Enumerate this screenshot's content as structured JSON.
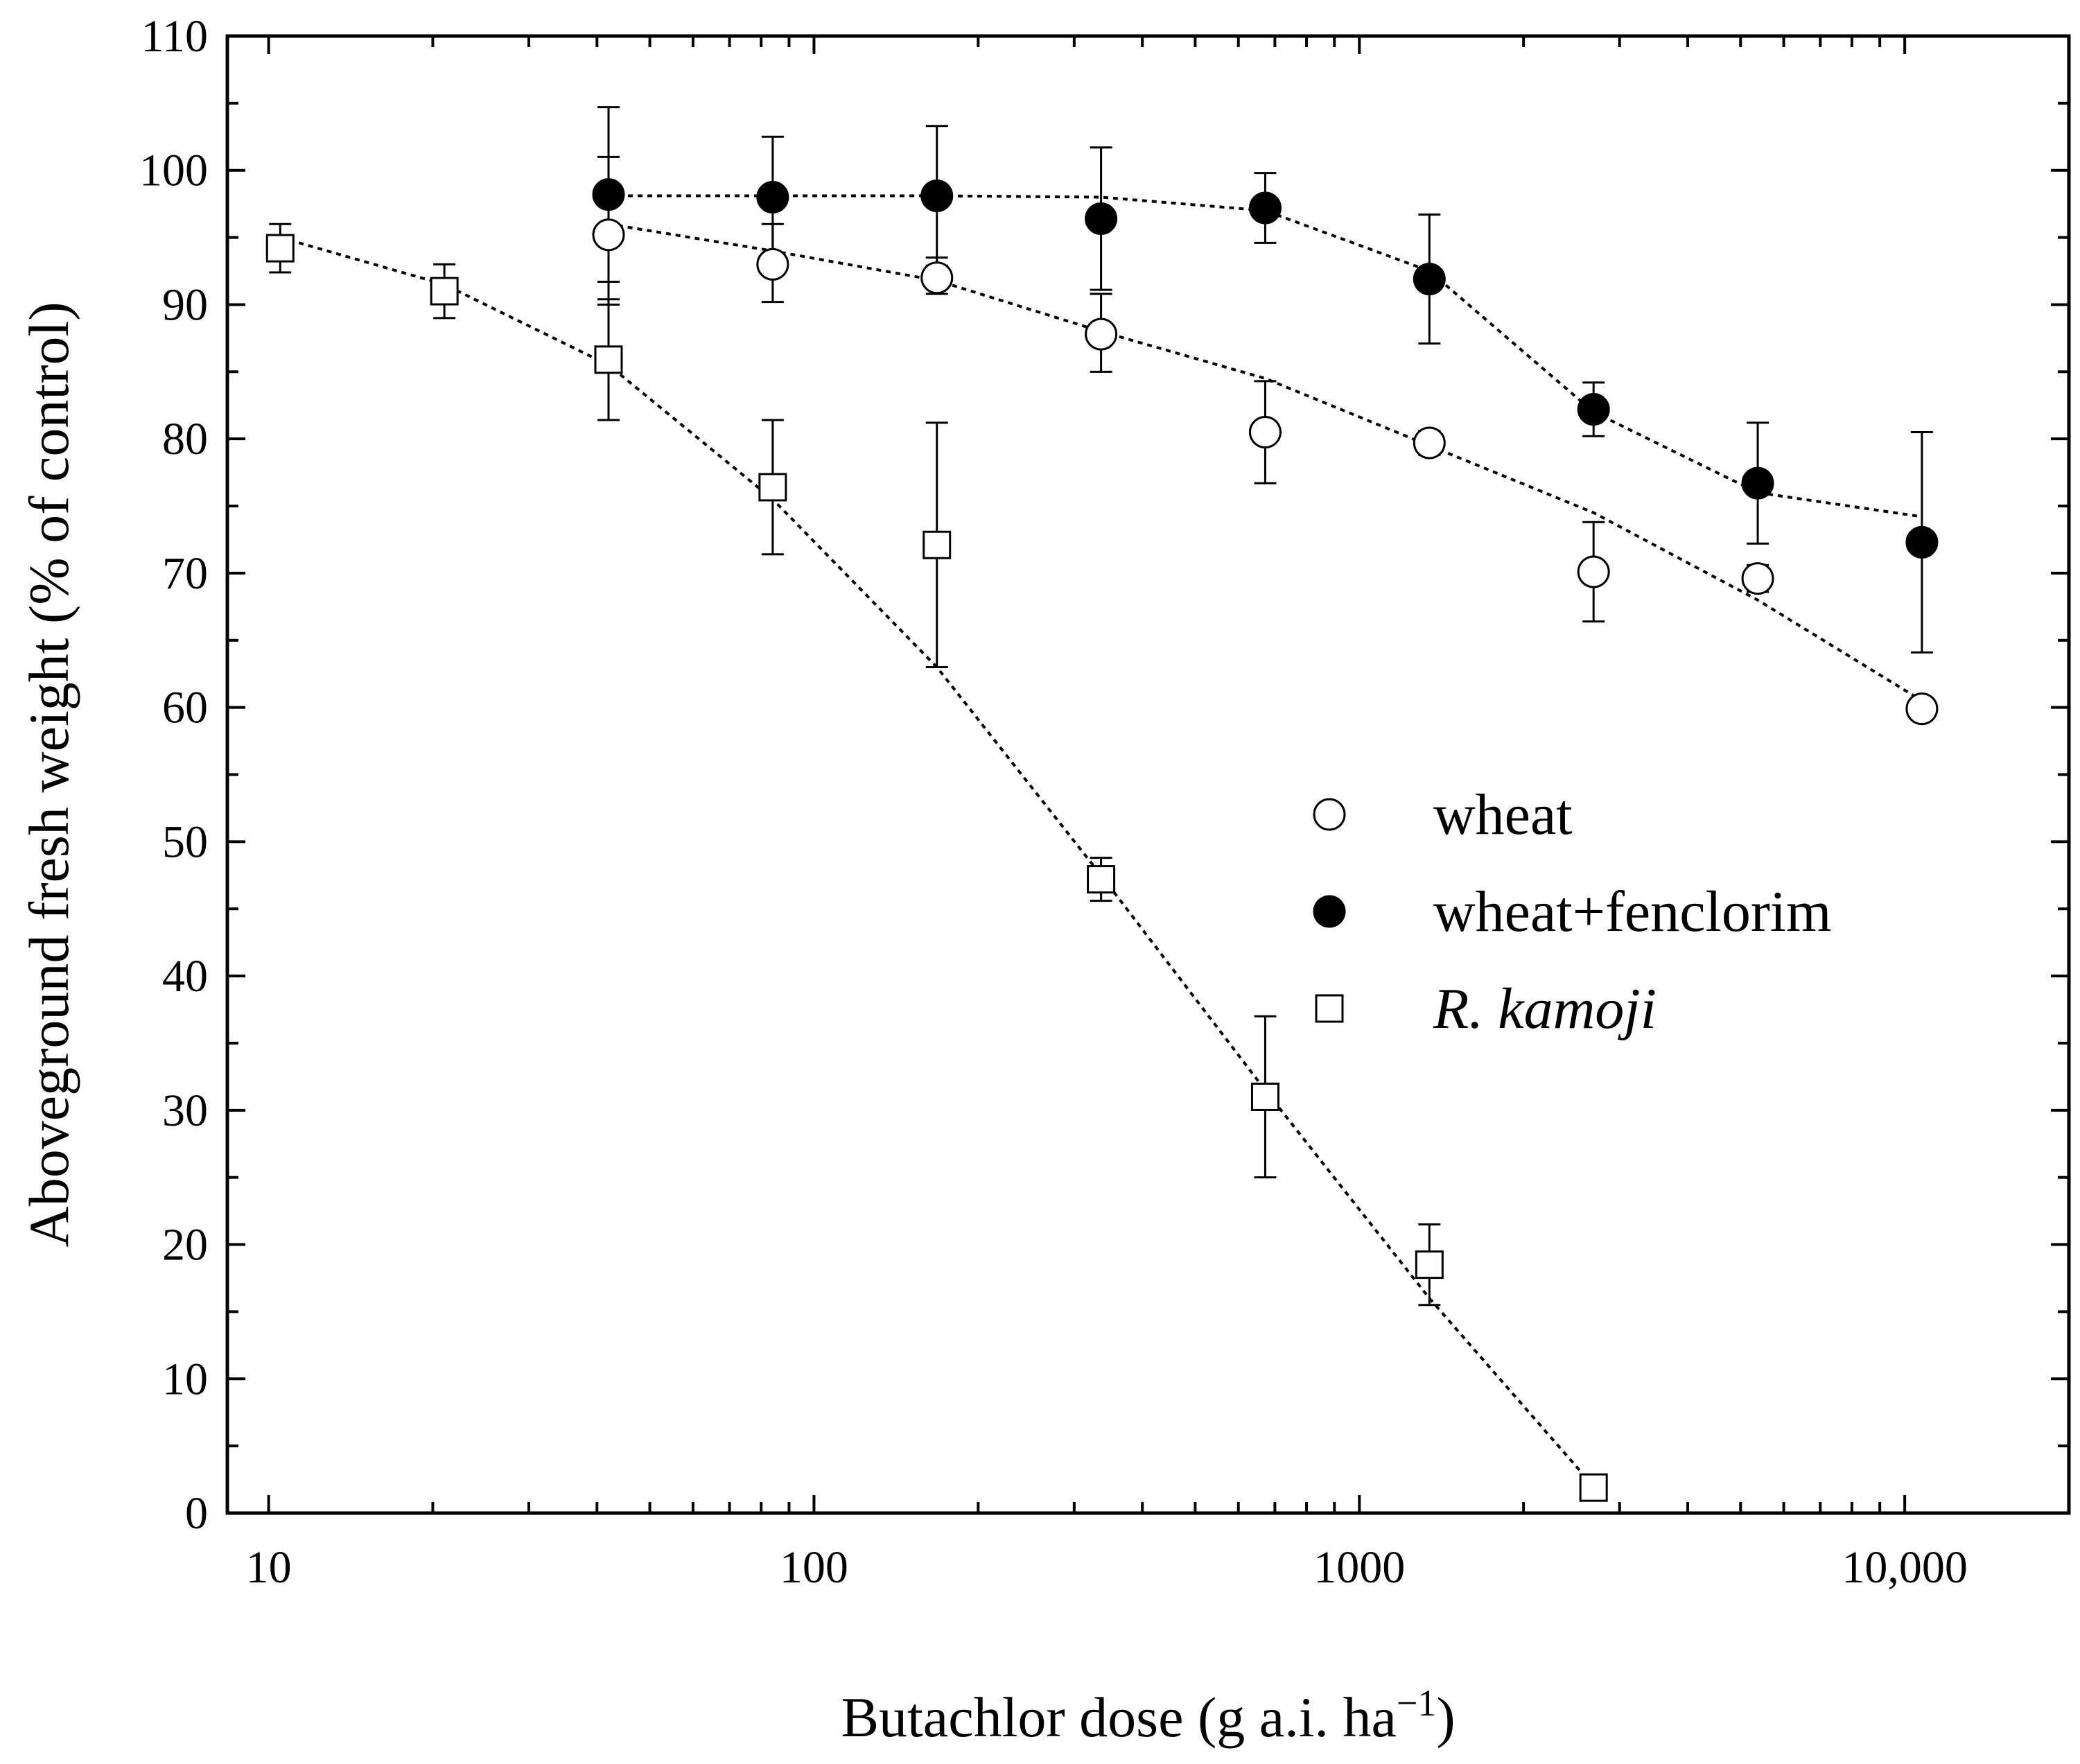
{
  "chart_data": {
    "type": "scatter",
    "title": "",
    "xlabel": "Butachlor dose (g a.i. ha",
    "xlabel_sup": "−1",
    "xlabel_close": ")",
    "ylabel": "Aboveground fresh weight (% of control)",
    "xscale": "log",
    "xlim": [
      8.4,
      20000
    ],
    "ylim": [
      0,
      110
    ],
    "x_tick_labels": [
      {
        "value": 10,
        "label": "10"
      },
      {
        "value": 100,
        "label": "100"
      },
      {
        "value": 1000,
        "label": "1000"
      },
      {
        "value": 10000,
        "label": "10,000"
      }
    ],
    "y_ticks": [
      0,
      10,
      20,
      30,
      40,
      50,
      60,
      70,
      80,
      90,
      100,
      110
    ],
    "y_tick_labels": [
      "0",
      "10",
      "20",
      "30",
      "40",
      "50",
      "60",
      "70",
      "80",
      "90",
      "100",
      "110"
    ],
    "grid": false,
    "legend_position": "center-right",
    "series": [
      {
        "name": "wheat",
        "marker": "open-circle",
        "italic": false,
        "points": [
          {
            "x": 42,
            "y": 95.2,
            "err_hi": 5.8,
            "err_lo": 5.2
          },
          {
            "x": 84,
            "y": 93.0,
            "err_hi": 3.0,
            "err_lo": 2.8
          },
          {
            "x": 168,
            "y": 92.0,
            "err_hi": 1.5,
            "err_lo": 1.2
          },
          {
            "x": 336,
            "y": 87.8,
            "err_hi": 3.0,
            "err_lo": 2.8
          },
          {
            "x": 672,
            "y": 80.5,
            "err_hi": 3.8,
            "err_lo": 3.8
          },
          {
            "x": 1344,
            "y": 79.7,
            "err_hi": 0.9,
            "err_lo": 0.9
          },
          {
            "x": 2688,
            "y": 70.1,
            "err_hi": 3.7,
            "err_lo": 3.7
          },
          {
            "x": 5376,
            "y": 69.6,
            "err_hi": 1.0,
            "err_lo": 1.0
          },
          {
            "x": 10752,
            "y": 59.9,
            "err_hi": 0.8,
            "err_lo": 0.8
          }
        ],
        "fit": [
          [
            42,
            96.0
          ],
          [
            84,
            94.0
          ],
          [
            168,
            91.8
          ],
          [
            336,
            88.0
          ],
          [
            672,
            84.5
          ],
          [
            1344,
            79.5
          ],
          [
            2688,
            74.5
          ],
          [
            5376,
            68.0
          ],
          [
            10752,
            60.5
          ]
        ]
      },
      {
        "name": "wheat+fenclorim",
        "marker": "filled-circle",
        "italic": false,
        "points": [
          {
            "x": 42,
            "y": 98.2,
            "err_hi": 6.5,
            "err_lo": 6.5
          },
          {
            "x": 84,
            "y": 98.0,
            "err_hi": 4.5,
            "err_lo": 4.5
          },
          {
            "x": 168,
            "y": 98.1,
            "err_hi": 5.2,
            "err_lo": 5.2
          },
          {
            "x": 336,
            "y": 96.4,
            "err_hi": 5.3,
            "err_lo": 5.3
          },
          {
            "x": 672,
            "y": 97.2,
            "err_hi": 2.6,
            "err_lo": 2.6
          },
          {
            "x": 1344,
            "y": 91.9,
            "err_hi": 4.8,
            "err_lo": 4.8
          },
          {
            "x": 2688,
            "y": 82.2,
            "err_hi": 2.0,
            "err_lo": 2.0
          },
          {
            "x": 5376,
            "y": 76.7,
            "err_hi": 4.5,
            "err_lo": 4.5
          },
          {
            "x": 10752,
            "y": 72.3,
            "err_hi": 8.2,
            "err_lo": 8.2
          }
        ],
        "fit": [
          [
            42,
            98.1
          ],
          [
            84,
            98.1
          ],
          [
            168,
            98.1
          ],
          [
            336,
            98.0
          ],
          [
            672,
            97.0
          ],
          [
            1344,
            92.5
          ],
          [
            2688,
            82.0
          ],
          [
            5376,
            76.0
          ],
          [
            10752,
            74.2
          ]
        ]
      },
      {
        "name": "R. kamoji",
        "marker": "open-square",
        "italic": true,
        "points": [
          {
            "x": 10.5,
            "y": 94.2,
            "err_hi": 1.8,
            "err_lo": 1.8
          },
          {
            "x": 21,
            "y": 91.0,
            "err_hi": 2.0,
            "err_lo": 2.0
          },
          {
            "x": 42,
            "y": 85.9,
            "err_hi": 4.5,
            "err_lo": 4.5
          },
          {
            "x": 84,
            "y": 76.4,
            "err_hi": 5.0,
            "err_lo": 5.0
          },
          {
            "x": 168,
            "y": 72.1,
            "err_hi": 9.1,
            "err_lo": 9.1
          },
          {
            "x": 336,
            "y": 47.2,
            "err_hi": 1.6,
            "err_lo": 1.6
          },
          {
            "x": 672,
            "y": 31.0,
            "err_hi": 6.0,
            "err_lo": 6.0
          },
          {
            "x": 1344,
            "y": 18.5,
            "err_hi": 3.0,
            "err_lo": 3.0
          },
          {
            "x": 2688,
            "y": 1.9,
            "err_hi": 0.3,
            "err_lo": 0.3
          }
        ],
        "fit": [
          [
            10.5,
            95.0
          ],
          [
            21,
            91.5
          ],
          [
            42,
            85.5
          ],
          [
            84,
            75.5
          ],
          [
            168,
            63.0
          ],
          [
            336,
            47.5
          ],
          [
            672,
            31.5
          ],
          [
            1344,
            16.0
          ],
          [
            2688,
            2.0
          ]
        ]
      }
    ]
  }
}
